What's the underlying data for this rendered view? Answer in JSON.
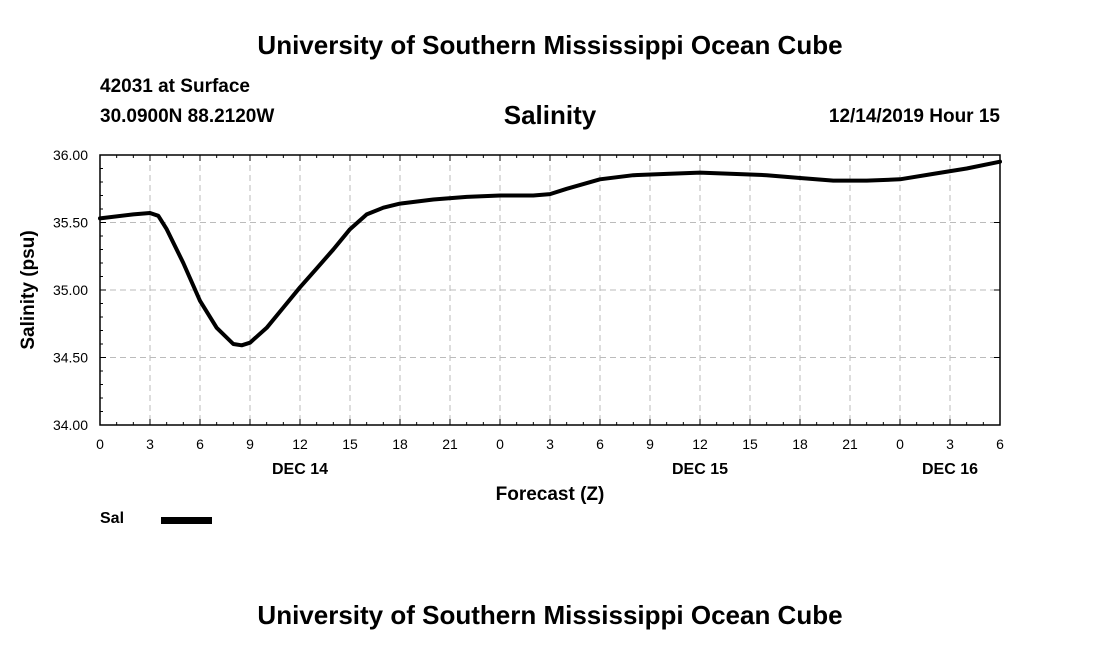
{
  "header": {
    "title": "University of Southern Mississippi Ocean Cube",
    "station": "42031 at Surface",
    "coords": "30.0900N 88.2120W",
    "date_label": "12/14/2019 Hour 15"
  },
  "footer": {
    "title": "University of Southern Mississippi Ocean Cube"
  },
  "legend": {
    "label": "Sal",
    "color": "#000000"
  },
  "chart_data": {
    "type": "line",
    "title": "Salinity",
    "xlabel": "Forecast (Z)",
    "ylabel": "Salinity (psu)",
    "xlim": [
      0,
      54
    ],
    "ylim": [
      34.0,
      36.0
    ],
    "grid": true,
    "x_tick_values": [
      0,
      3,
      6,
      9,
      12,
      15,
      18,
      21,
      24,
      27,
      30,
      33,
      36,
      39,
      42,
      45,
      48,
      51,
      54
    ],
    "x_tick_labels": [
      "0",
      "3",
      "6",
      "9",
      "12",
      "15",
      "18",
      "21",
      "0",
      "3",
      "6",
      "9",
      "12",
      "15",
      "18",
      "21",
      "0",
      "3",
      "6"
    ],
    "day_labels": [
      {
        "x": 12,
        "label": "DEC 14"
      },
      {
        "x": 36,
        "label": "DEC 15"
      },
      {
        "x": 51,
        "label": "DEC 16"
      }
    ],
    "y_tick_values": [
      34.0,
      34.5,
      35.0,
      35.5,
      36.0
    ],
    "y_tick_labels": [
      "34.00",
      "34.50",
      "35.00",
      "35.50",
      "36.00"
    ],
    "series": [
      {
        "name": "Sal",
        "x": [
          0,
          2,
          3,
          3.5,
          4,
          5,
          6,
          7,
          8,
          8.5,
          9,
          10,
          11,
          12,
          13,
          14,
          15,
          16,
          17,
          18,
          20,
          22,
          24,
          26,
          27,
          28,
          30,
          32,
          34,
          36,
          38,
          40,
          42,
          44,
          46,
          48,
          50,
          52,
          54
        ],
        "values": [
          35.53,
          35.56,
          35.57,
          35.55,
          35.45,
          35.2,
          34.92,
          34.72,
          34.6,
          34.59,
          34.61,
          34.72,
          34.87,
          35.02,
          35.16,
          35.3,
          35.45,
          35.56,
          35.61,
          35.64,
          35.67,
          35.69,
          35.7,
          35.7,
          35.71,
          35.75,
          35.82,
          35.85,
          35.86,
          35.87,
          35.86,
          35.85,
          35.83,
          35.81,
          35.81,
          35.82,
          35.86,
          35.9,
          35.95
        ]
      }
    ]
  }
}
